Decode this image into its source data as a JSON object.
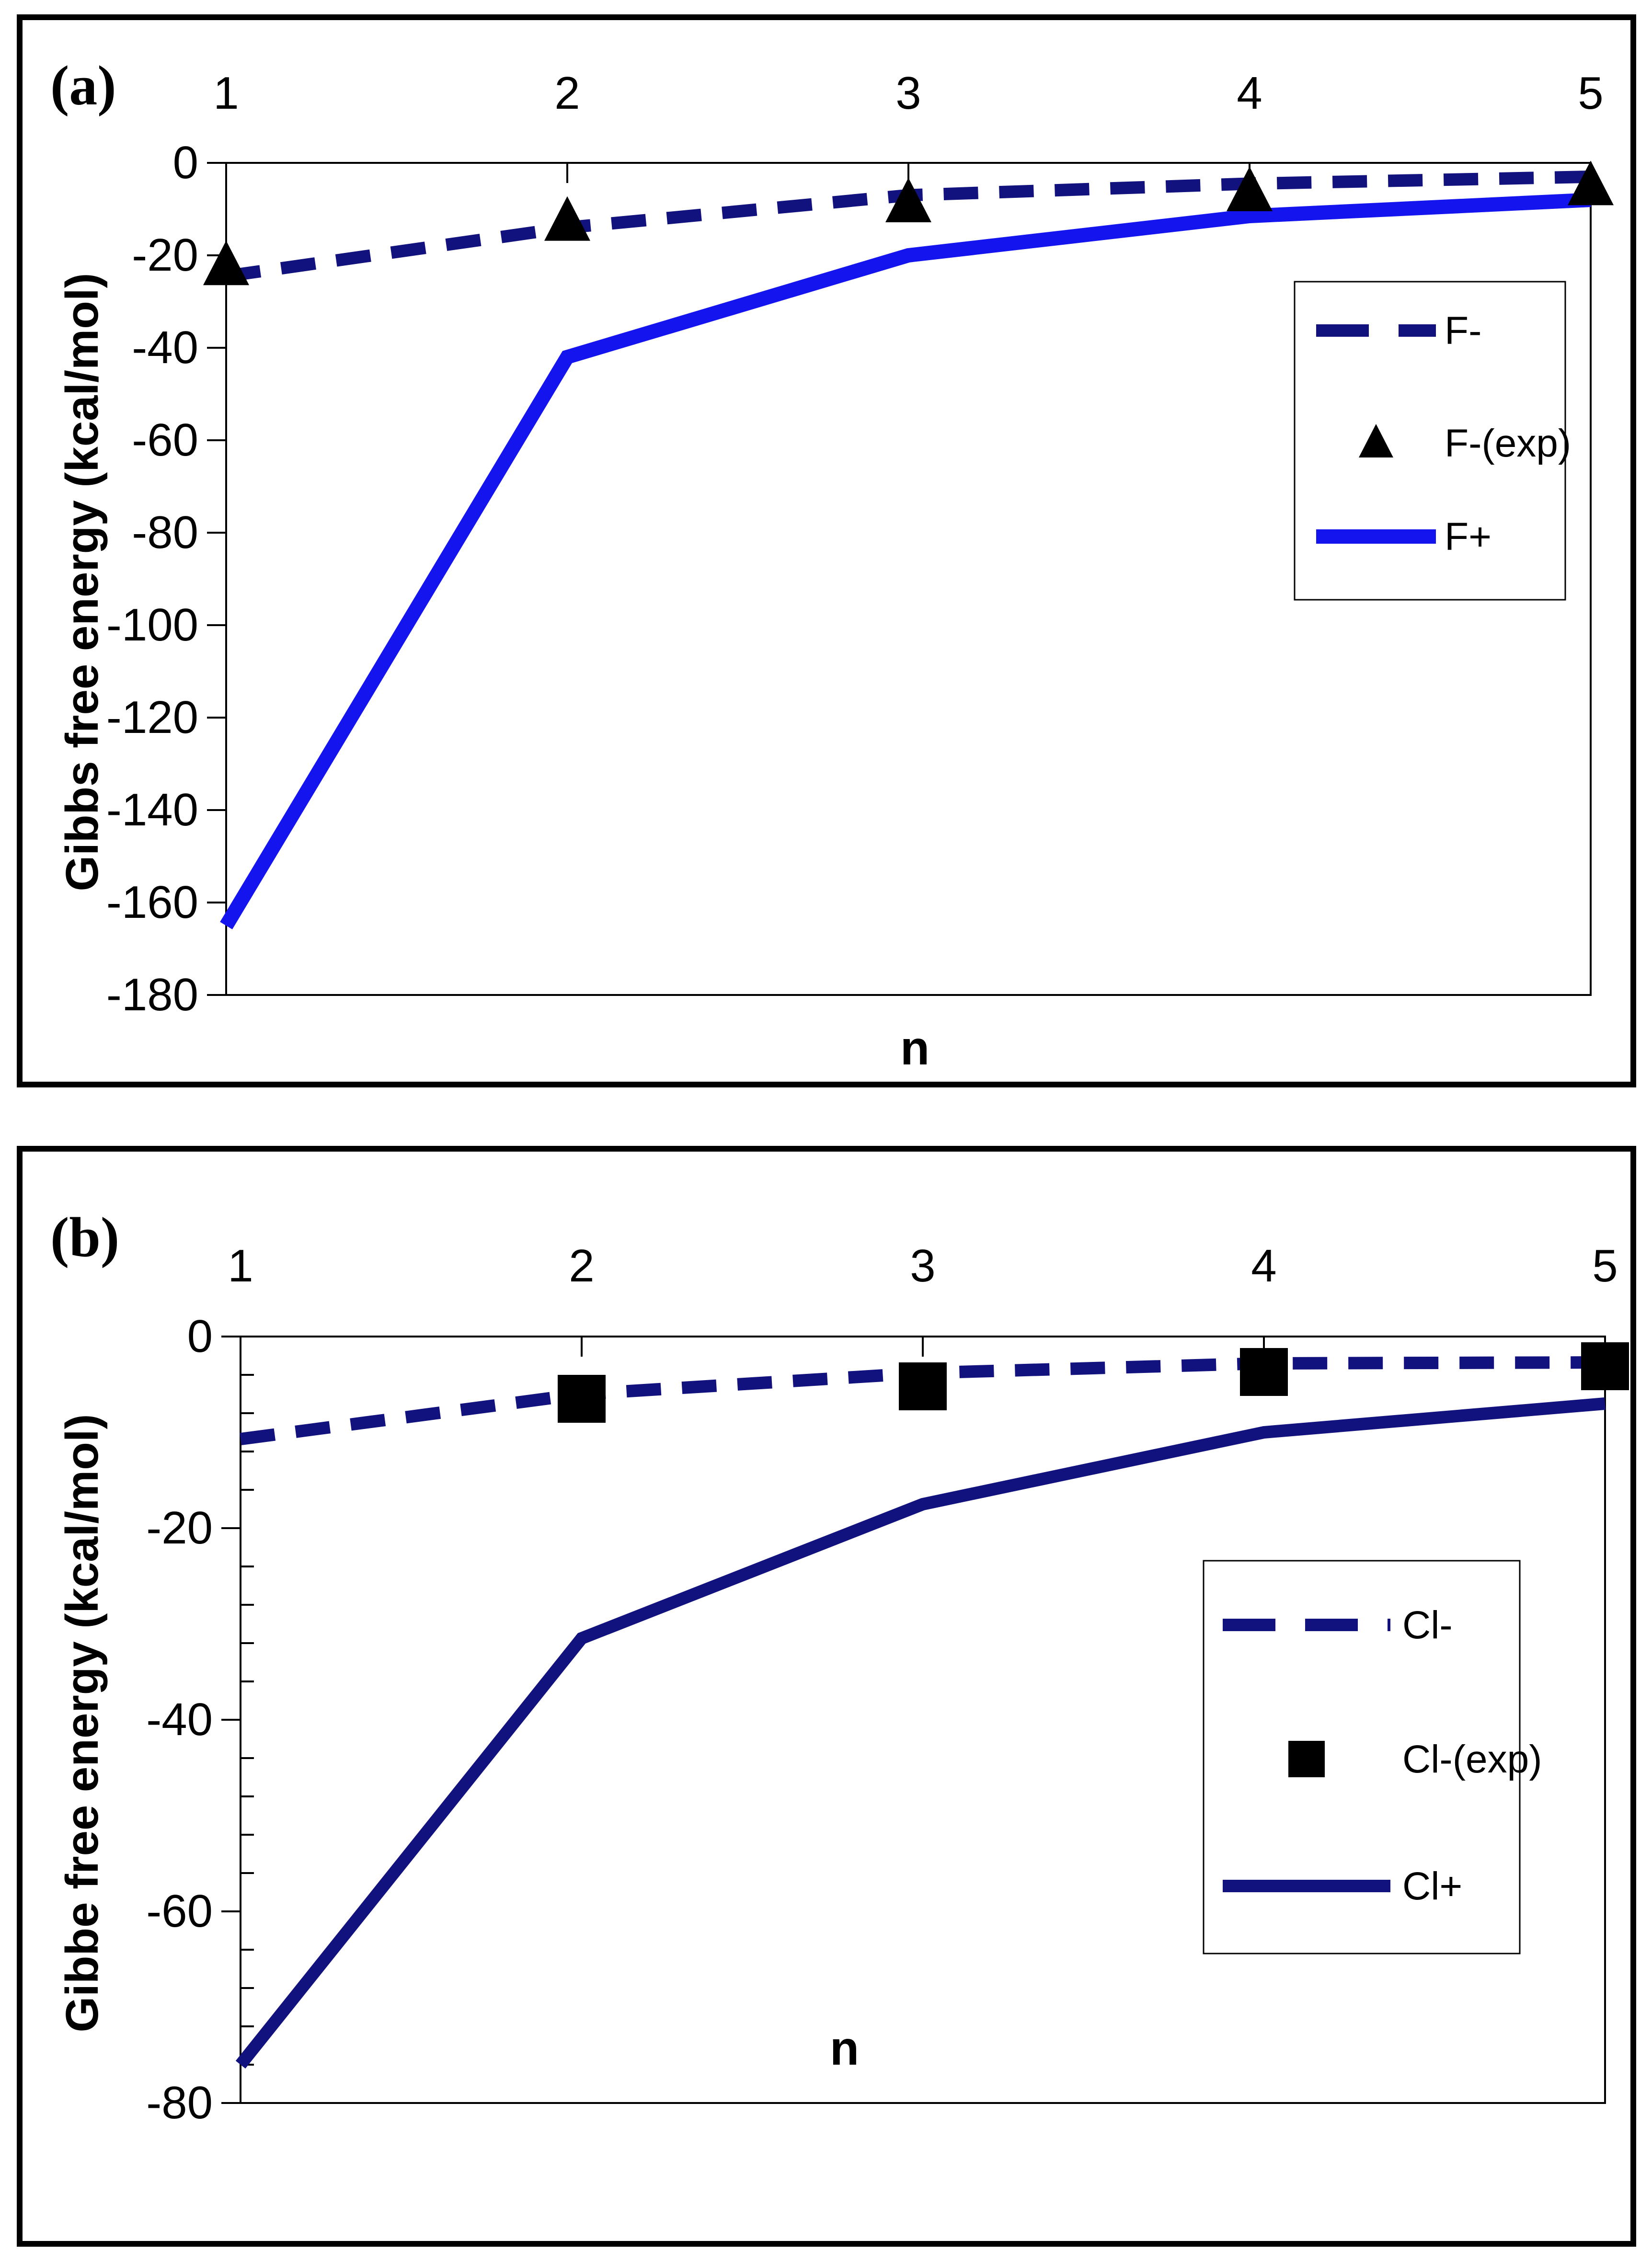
{
  "figure": {
    "description_visible_text_only": true,
    "panel_a_label": "(a)",
    "panel_b_label": "(b)"
  },
  "chart_data": [
    {
      "type": "line",
      "panel_label": "(a)",
      "xlabel": "n",
      "ylabel": "Gibbs free energy (kcal/mol)",
      "x": [
        1,
        2,
        3,
        4,
        5
      ],
      "x_tick_labels": [
        "1",
        "2",
        "3",
        "4",
        "5"
      ],
      "ylim": [
        -180,
        0
      ],
      "y_major_step": 20,
      "y_minor_step": null,
      "y_tick_labels": [
        "0",
        "-20",
        "-40",
        "-60",
        "-80",
        "-100",
        "-120",
        "-140",
        "-160",
        "-180"
      ],
      "grid": false,
      "legend_position": "right-inside",
      "series": [
        {
          "name": "F-",
          "kind": "line",
          "style": "dashed",
          "color": "#12127f",
          "marker": null,
          "values": [
            -24.5,
            -14,
            -7,
            -4.5,
            -3
          ]
        },
        {
          "name": "F-(exp)",
          "kind": "scatter",
          "style": "none",
          "color": "#000000",
          "marker": "triangle",
          "values": [
            -22,
            -12.4,
            -8.4,
            -6,
            -4.7
          ]
        },
        {
          "name": "F+",
          "kind": "line",
          "style": "solid",
          "color": "#1414ef",
          "marker": null,
          "values": [
            -165,
            -42,
            -20,
            -11.5,
            -8
          ]
        }
      ]
    },
    {
      "type": "line",
      "panel_label": "(b)",
      "xlabel": "n",
      "ylabel": "Gibbe free energy (kcal/mol)",
      "x": [
        1,
        2,
        3,
        4,
        5
      ],
      "x_tick_labels": [
        "1",
        "2",
        "3",
        "4",
        "5"
      ],
      "ylim": [
        -80,
        0
      ],
      "y_major_step": 20,
      "y_minor_step": 4,
      "y_tick_labels": [
        "0",
        "-20",
        "-40",
        "-60",
        "-80"
      ],
      "grid": false,
      "legend_position": "right-inside",
      "series": [
        {
          "name": "Cl-",
          "kind": "line",
          "style": "dashed",
          "color": "#12127f",
          "marker": null,
          "values": [
            -10.7,
            -6,
            -3.8,
            -2.8,
            -2.7
          ]
        },
        {
          "name": "Cl-(exp)",
          "kind": "scatter",
          "style": "none",
          "color": "#000000",
          "marker": "square",
          "values": [
            null,
            -6.5,
            -5.2,
            -3.7,
            -3.1
          ]
        },
        {
          "name": "Cl+",
          "kind": "line",
          "style": "solid",
          "color": "#12127f",
          "marker": null,
          "values": [
            -76,
            -31.5,
            -17.5,
            -10,
            -7
          ]
        }
      ]
    }
  ]
}
